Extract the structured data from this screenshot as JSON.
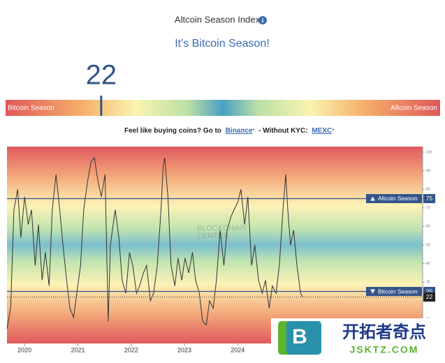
{
  "header": {
    "title": "Altcoin Season Index",
    "headline": "It's Bitcoin Season!"
  },
  "gauge": {
    "value": 22,
    "range": [
      0,
      100
    ],
    "left_label": "Bitcoin Season",
    "right_label": "Altcoin Season"
  },
  "promo": {
    "lead": "Feel like buying coins? Go to",
    "link1": "Binance",
    "star1": "*",
    "middle": "- Without KYC:",
    "link2": "MEXC",
    "star2": "*"
  },
  "logo": {
    "icon": "B",
    "name": "开拓者奇点",
    "url": "JSKTZ.COM"
  },
  "chart_data": {
    "type": "line",
    "color": "#333333",
    "watermark": [
      "BLOCKCHAIN",
      "CENTER"
    ],
    "x": [
      2019.67,
      2019.74,
      2019.8,
      2019.87,
      2019.93,
      2020.0,
      2020.07,
      2020.13,
      2020.2,
      2020.26,
      2020.33,
      2020.39,
      2020.46,
      2020.52,
      2020.59,
      2020.66,
      2020.72,
      2020.79,
      2020.85,
      2020.92,
      2020.98,
      2021.05,
      2021.11,
      2021.18,
      2021.25,
      2021.31,
      2021.38,
      2021.44,
      2021.51,
      2021.57,
      2021.61,
      2021.7,
      2021.77,
      2021.83,
      2021.9,
      2021.97,
      2022.03,
      2022.1,
      2022.16,
      2022.23,
      2022.29,
      2022.36,
      2022.42,
      2022.49,
      2022.56,
      2022.6,
      2022.63,
      2022.69,
      2022.75,
      2022.82,
      2022.88,
      2022.95,
      2023.01,
      2023.08,
      2023.15,
      2023.21,
      2023.28,
      2023.34,
      2023.41,
      2023.47,
      2023.54,
      2023.6,
      2023.67,
      2023.74,
      2023.8,
      2023.87,
      2023.93,
      2024.0,
      2024.06,
      2024.13,
      2024.19,
      2024.26,
      2024.32,
      2024.39,
      2024.46,
      2024.52,
      2024.59,
      2024.65,
      2024.72,
      2024.78,
      2024.85,
      2024.9,
      2024.94,
      2024.99,
      2025.05,
      2025.11,
      2025.18,
      2025.22
    ],
    "values": [
      5,
      16,
      69,
      80,
      54,
      76,
      61,
      69,
      39,
      61,
      31,
      46,
      28,
      69,
      88,
      69,
      50,
      31,
      16,
      11,
      24,
      39,
      69,
      84,
      95,
      97,
      84,
      76,
      88,
      9,
      50,
      69,
      54,
      31,
      24,
      46,
      39,
      24,
      28,
      35,
      39,
      20,
      24,
      39,
      69,
      92,
      97,
      76,
      39,
      28,
      43,
      31,
      43,
      35,
      46,
      31,
      24,
      9,
      7,
      20,
      16,
      31,
      58,
      39,
      58,
      65,
      69,
      73,
      80,
      61,
      76,
      39,
      50,
      31,
      24,
      31,
      16,
      28,
      24,
      39,
      69,
      88,
      69,
      50,
      58,
      39,
      24,
      22
    ],
    "xlim": [
      2019.67,
      2027.47
    ],
    "ylim": [
      -3,
      103
    ],
    "xticks": [
      2020,
      2021,
      2022,
      2023,
      2024
    ],
    "yticks": [
      0,
      10,
      20,
      30,
      40,
      50,
      60,
      70,
      80,
      90,
      100
    ],
    "thresholds": [
      {
        "label": "Altcoin Season",
        "value": 75
      },
      {
        "label": "Bitcoin Season",
        "value": 25
      }
    ],
    "current": 22
  }
}
